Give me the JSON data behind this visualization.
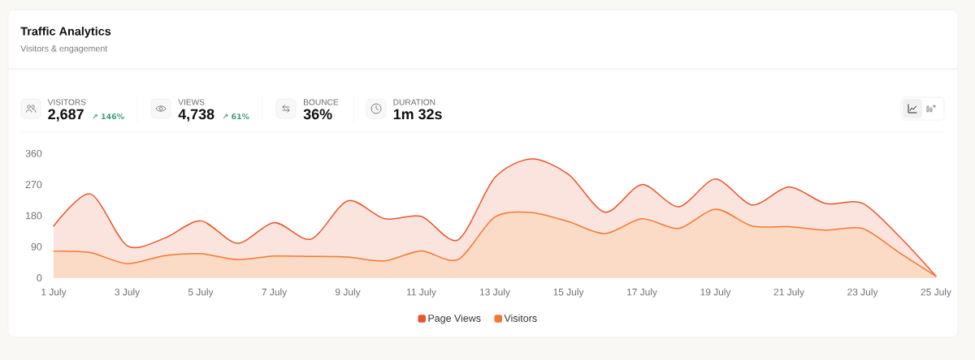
{
  "chart_data": {
    "type": "area",
    "title": "Traffic Analytics",
    "subtitle": "Visitors & engagement",
    "annotations": [
      "VISITORS",
      "2,687",
      "↗ 146%",
      "VIEWS",
      "4,738",
      "↗ 61%",
      "BOUNCE",
      "36%",
      "DURATION",
      "1m 32s"
    ],
    "categories": [
      "1 July",
      null,
      "3 July",
      null,
      "5 July",
      null,
      "7 July",
      null,
      "9 July",
      null,
      "11 July",
      null,
      "13 July",
      null,
      "15 July",
      null,
      "17 July",
      null,
      "19 July",
      null,
      "21 July",
      null,
      "23 July",
      null,
      "25 July"
    ],
    "series": [
      {
        "name": "Page Views",
        "color": "#e9552c",
        "values": [
          150,
          243,
          93,
          114,
          165,
          100,
          160,
          112,
          223,
          171,
          178,
          110,
          290,
          344,
          300,
          190,
          270,
          206,
          286,
          211,
          263,
          215,
          216,
          120,
          5
        ]
      },
      {
        "name": "Visitors",
        "color": "#f17a33",
        "values": [
          77,
          73,
          41,
          64,
          70,
          53,
          63,
          62,
          60,
          49,
          78,
          53,
          176,
          189,
          163,
          128,
          171,
          143,
          199,
          150,
          148,
          138,
          143,
          73,
          5
        ]
      }
    ],
    "ylim": [
      0,
      360
    ],
    "yticks": [
      0,
      90,
      180,
      270,
      360
    ],
    "legend": "bottom"
  }
}
